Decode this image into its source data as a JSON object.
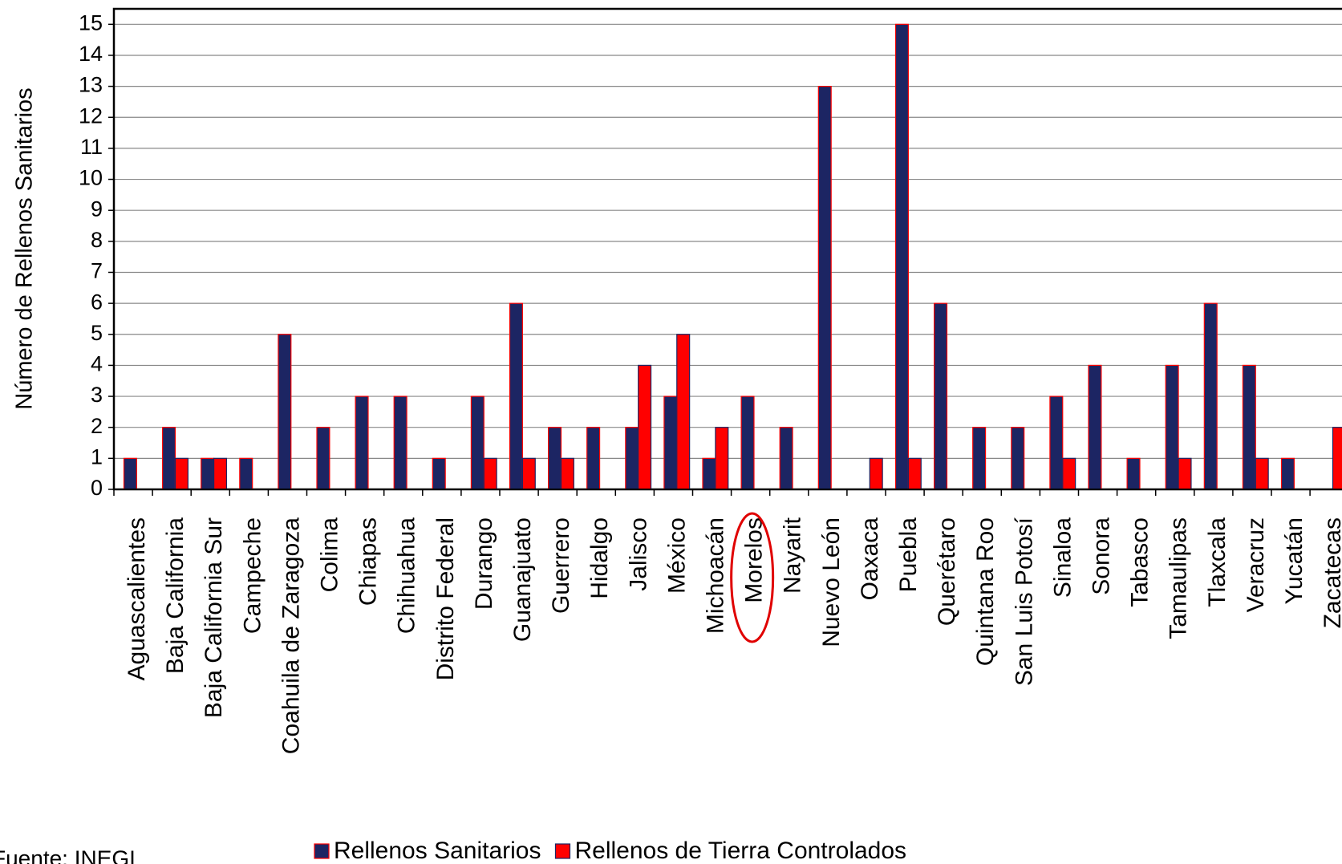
{
  "chart_data": {
    "type": "bar",
    "y_label": "Número de Rellenos Sanitarios",
    "source": "Fuente: INEGI",
    "categories": [
      "Aguascalientes",
      "Baja California",
      "Baja California Sur",
      "Campeche",
      "Coahuila de Zaragoza",
      "Colima",
      "Chiapas",
      "Chihuahua",
      "Distrito Federal",
      "Durango",
      "Guanajuato",
      "Guerrero",
      "Hidalgo",
      "Jalisco",
      "México",
      "Michoacán",
      "Morelos",
      "Nayarit",
      "Nuevo León",
      "Oaxaca",
      "Puebla",
      "Querétaro",
      "Quintana Roo",
      "San Luis Potosí",
      "Sinaloa",
      "Sonora",
      "Tabasco",
      "Tamaulipas",
      "Tlaxcala",
      "Veracruz",
      "Yucatán",
      "Zacatecas"
    ],
    "series": [
      {
        "name": "Rellenos Sanitarios",
        "color": "#1c2563",
        "values": [
          1,
          2,
          1,
          1,
          5,
          2,
          3,
          3,
          1,
          3,
          6,
          2,
          2,
          2,
          3,
          1,
          3,
          2,
          13,
          0,
          15,
          6,
          2,
          2,
          3,
          4,
          1,
          4,
          6,
          4,
          1,
          0
        ]
      },
      {
        "name": "Rellenos de Tierra Controlados",
        "color": "#ff0000",
        "values": [
          0,
          1,
          1,
          0,
          0,
          0,
          0,
          0,
          0,
          1,
          1,
          1,
          0,
          4,
          5,
          2,
          0,
          0,
          0,
          1,
          1,
          0,
          0,
          0,
          1,
          0,
          0,
          1,
          0,
          1,
          0,
          2
        ]
      }
    ],
    "ylim": [
      0,
      15.5
    ],
    "yticks": [
      0,
      1,
      2,
      3,
      4,
      5,
      6,
      7,
      8,
      9,
      10,
      11,
      12,
      13,
      14,
      15
    ],
    "grid": true,
    "legend": "bottom"
  }
}
